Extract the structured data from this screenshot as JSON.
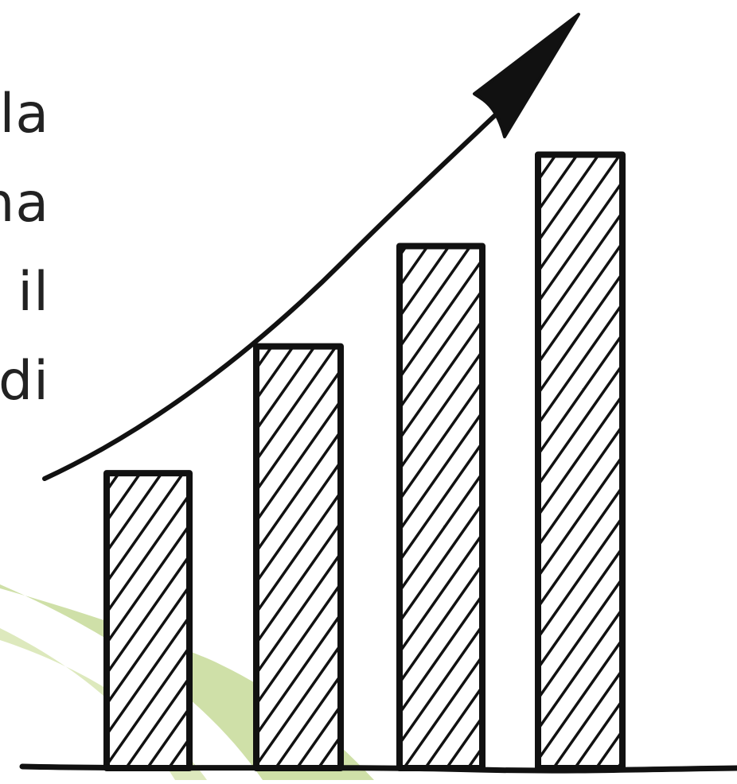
{
  "text_fragments": [
    "la",
    "na",
    "il",
    "di"
  ],
  "colors": {
    "ink": "#111111",
    "text": "#222222",
    "swoosh": "#cfe0a8",
    "background": "#ffffff"
  },
  "chart_data": {
    "type": "bar",
    "categories": [
      "",
      "",
      "",
      ""
    ],
    "values": [
      1,
      1.43,
      1.77,
      2.08
    ],
    "title": "",
    "xlabel": "",
    "ylabel": "",
    "ylim": [
      0,
      2.2
    ],
    "grid": false,
    "trend_arrow": "up"
  }
}
